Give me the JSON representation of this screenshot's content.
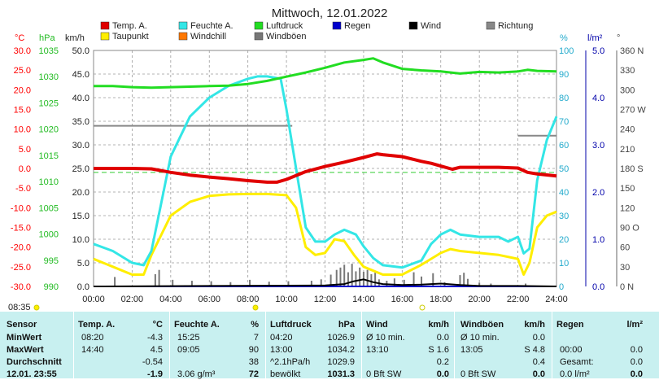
{
  "title": "Mittwoch, 12.01.2022",
  "legend": [
    {
      "label": "Temp. A.",
      "color": "#e00000"
    },
    {
      "label": "Feuchte A.",
      "color": "#33e6e6"
    },
    {
      "label": "Luftdruck",
      "color": "#22dd22"
    },
    {
      "label": "Regen",
      "color": "#0000cc"
    },
    {
      "label": "Wind",
      "color": "#000000"
    },
    {
      "label": "Richtung",
      "color": "#888888"
    },
    {
      "label": "Taupunkt",
      "color": "#ffee00"
    },
    {
      "label": "Windchill",
      "color": "#ff7700"
    },
    {
      "label": "Windböen",
      "color": "#777777"
    }
  ],
  "axes_units": {
    "temp": "°C",
    "press": "hPa",
    "wind": "km/h",
    "hum": "%",
    "rain": "l/m²",
    "dir": "°"
  },
  "left_axis_colors": {
    "temp": "#ff0000",
    "press": "#22bb22",
    "wind": "#222222"
  },
  "right_axis_colors": {
    "hum": "#22aacc",
    "rain": "#0000aa",
    "dir": "#444444"
  },
  "sun_times": {
    "sunrise": "08:35"
  },
  "chart_data": {
    "type": "line",
    "x_range": [
      "00:00",
      "24:00"
    ],
    "x_ticks": [
      "00:00",
      "02:00",
      "04:00",
      "06:00",
      "08:00",
      "10:00",
      "12:00",
      "14:00",
      "16:00",
      "18:00",
      "20:00",
      "22:00",
      "24:00"
    ],
    "axes": {
      "temp": {
        "unit": "°C",
        "min": -30,
        "max": 30,
        "ticks": [
          "30.0",
          "25.0",
          "20.0",
          "15.0",
          "10.0",
          "5.0",
          "0.0",
          "-5.0",
          "-10.0",
          "-15.0",
          "-20.0",
          "-25.0",
          "-30.0"
        ]
      },
      "press": {
        "unit": "hPa",
        "min": 990,
        "max": 1035,
        "ticks": [
          "1035",
          "1030",
          "1025",
          "1020",
          "1015",
          "1010",
          "1005",
          "1000",
          "995",
          "990"
        ]
      },
      "wind": {
        "unit": "km/h",
        "min": 0,
        "max": 50,
        "ticks": [
          "50.0",
          "45.0",
          "40.0",
          "35.0",
          "30.0",
          "25.0",
          "20.0",
          "15.0",
          "10.0",
          "5.0",
          "0.0"
        ]
      },
      "hum": {
        "unit": "%",
        "min": 0,
        "max": 100,
        "ticks": [
          "100",
          "90",
          "80",
          "70",
          "60",
          "50",
          "40",
          "30",
          "20",
          "10",
          "0"
        ]
      },
      "rain": {
        "unit": "l/m²",
        "min": 0,
        "max": 5,
        "ticks": [
          "5.0",
          "4.0",
          "3.0",
          "2.0",
          "1.0",
          "0.0"
        ]
      },
      "dir": {
        "unit": "°",
        "min": 0,
        "max": 360,
        "ticks": [
          "360 N",
          "330",
          "300",
          "270 W",
          "240",
          "210",
          "180 S",
          "150",
          "120",
          "90 O",
          "60",
          "30",
          "0 N"
        ]
      }
    },
    "series": [
      {
        "name": "Temp. A.",
        "axis": "temp",
        "color": "#e00000",
        "points": [
          [
            0,
            0
          ],
          [
            0.5,
            0
          ],
          [
            2,
            0
          ],
          [
            3,
            -0.1
          ],
          [
            4,
            -1
          ],
          [
            5,
            -1.7
          ],
          [
            6,
            -2.2
          ],
          [
            7,
            -2.6
          ],
          [
            8,
            -3.1
          ],
          [
            9,
            -3.5
          ],
          [
            9.5,
            -3.5
          ],
          [
            10,
            -2.8
          ],
          [
            11,
            -0.8
          ],
          [
            12,
            0.5
          ],
          [
            13,
            1.6
          ],
          [
            14,
            2.8
          ],
          [
            14.7,
            3.7
          ],
          [
            15,
            3.5
          ],
          [
            16,
            3
          ],
          [
            17,
            1.8
          ],
          [
            17.5,
            1.3
          ],
          [
            18,
            0.6
          ],
          [
            18.6,
            -0.2
          ],
          [
            19,
            0.3
          ],
          [
            20,
            0.3
          ],
          [
            21,
            0.3
          ],
          [
            22,
            0.1
          ],
          [
            22.5,
            -1
          ],
          [
            23,
            -1.4
          ],
          [
            24,
            -1.9
          ]
        ]
      },
      {
        "name": "Feuchte A.",
        "axis": "hum",
        "color": "#33e6e6",
        "points": [
          [
            0,
            18
          ],
          [
            1,
            15
          ],
          [
            2,
            10
          ],
          [
            2.6,
            9
          ],
          [
            3,
            15
          ],
          [
            3.5,
            35
          ],
          [
            4,
            55
          ],
          [
            5,
            72
          ],
          [
            6,
            80
          ],
          [
            7,
            85
          ],
          [
            8,
            88
          ],
          [
            8.5,
            89
          ],
          [
            9,
            89
          ],
          [
            9.7,
            88
          ],
          [
            10,
            75
          ],
          [
            10.5,
            50
          ],
          [
            11,
            25
          ],
          [
            11.5,
            19
          ],
          [
            12,
            19
          ],
          [
            12.5,
            22
          ],
          [
            13,
            24
          ],
          [
            13.6,
            22
          ],
          [
            14,
            17
          ],
          [
            14.5,
            12
          ],
          [
            15,
            9
          ],
          [
            16,
            8
          ],
          [
            17,
            11
          ],
          [
            17.5,
            18
          ],
          [
            18,
            22
          ],
          [
            18.5,
            24
          ],
          [
            19,
            22
          ],
          [
            20,
            21
          ],
          [
            21,
            21
          ],
          [
            21.5,
            19
          ],
          [
            22,
            21
          ],
          [
            22.3,
            14
          ],
          [
            22.6,
            16
          ],
          [
            23,
            45
          ],
          [
            23.5,
            62
          ],
          [
            24,
            72
          ]
        ]
      },
      {
        "name": "Luftdruck",
        "axis": "press",
        "color": "#22dd22",
        "points": [
          [
            0,
            1028.2
          ],
          [
            1,
            1028.2
          ],
          [
            2,
            1028.0
          ],
          [
            3,
            1027.9
          ],
          [
            4,
            1028.0
          ],
          [
            5,
            1028.1
          ],
          [
            6,
            1028.2
          ],
          [
            7,
            1028.3
          ],
          [
            8,
            1028.6
          ],
          [
            9,
            1029.2
          ],
          [
            10,
            1030.0
          ],
          [
            11,
            1030.8
          ],
          [
            12,
            1031.7
          ],
          [
            13,
            1032.7
          ],
          [
            14,
            1033.2
          ],
          [
            14.5,
            1033.5
          ],
          [
            15,
            1032.7
          ],
          [
            16,
            1031.5
          ],
          [
            17,
            1031.2
          ],
          [
            18,
            1031.0
          ],
          [
            19,
            1030.6
          ],
          [
            20,
            1030.9
          ],
          [
            21,
            1030.8
          ],
          [
            22,
            1031.0
          ],
          [
            22.5,
            1031.3
          ],
          [
            23,
            1031.1
          ],
          [
            24,
            1031.0
          ]
        ]
      },
      {
        "name": "Taupunkt",
        "axis": "temp",
        "color": "#ffee00",
        "points": [
          [
            0,
            -23
          ],
          [
            1,
            -25
          ],
          [
            2,
            -27
          ],
          [
            2.6,
            -27
          ],
          [
            3,
            -22
          ],
          [
            4,
            -12
          ],
          [
            5,
            -8.5
          ],
          [
            6,
            -7
          ],
          [
            7,
            -6.6
          ],
          [
            8,
            -6.5
          ],
          [
            9,
            -6.5
          ],
          [
            10,
            -6.8
          ],
          [
            10.5,
            -10
          ],
          [
            11,
            -20
          ],
          [
            11.5,
            -22
          ],
          [
            12,
            -21.5
          ],
          [
            12.5,
            -18
          ],
          [
            13,
            -18.5
          ],
          [
            13.5,
            -22
          ],
          [
            14,
            -25
          ],
          [
            15,
            -27
          ],
          [
            16,
            -27
          ],
          [
            17,
            -24.5
          ],
          [
            18,
            -21.5
          ],
          [
            18.5,
            -20.5
          ],
          [
            19,
            -21
          ],
          [
            20,
            -21.5
          ],
          [
            21,
            -22
          ],
          [
            22,
            -23
          ],
          [
            22.3,
            -27
          ],
          [
            22.6,
            -24
          ],
          [
            23,
            -15
          ],
          [
            23.5,
            -12
          ],
          [
            24,
            -11
          ]
        ]
      },
      {
        "name": "Windchill",
        "axis": "temp",
        "color": "#ff7700",
        "points": []
      },
      {
        "name": "Regen",
        "axis": "rain",
        "color": "#0000cc",
        "points": [
          [
            0,
            0
          ],
          [
            24,
            0
          ]
        ]
      },
      {
        "name": "Wind",
        "axis": "wind",
        "color": "#000000",
        "points": [
          [
            0,
            0
          ],
          [
            12,
            0.2
          ],
          [
            13,
            0.5
          ],
          [
            13.5,
            1.1
          ],
          [
            14,
            1.5
          ],
          [
            14.5,
            0.9
          ],
          [
            15,
            0.5
          ],
          [
            16,
            0.3
          ],
          [
            17,
            0.4
          ],
          [
            18,
            0.6
          ],
          [
            19,
            0.3
          ],
          [
            20,
            0.1
          ],
          [
            21,
            0.1
          ],
          [
            22,
            0.1
          ],
          [
            24,
            0
          ]
        ]
      },
      {
        "name": "Windböen",
        "axis": "wind",
        "color": "#777777",
        "bars": [
          [
            1.1,
            2
          ],
          [
            3.2,
            2.6
          ],
          [
            3.4,
            3.5
          ],
          [
            4.1,
            1.4
          ],
          [
            5.1,
            1.2
          ],
          [
            6.1,
            1.1
          ],
          [
            7.1,
            0.9
          ],
          [
            8.1,
            1.4
          ],
          [
            9.1,
            1.0
          ],
          [
            10.1,
            1.1
          ],
          [
            11.3,
            1.2
          ],
          [
            11.8,
            1.5
          ],
          [
            12.3,
            2.5
          ],
          [
            12.6,
            3.5
          ],
          [
            12.8,
            4.0
          ],
          [
            13.0,
            4.6
          ],
          [
            13.2,
            3.0
          ],
          [
            13.4,
            4.8
          ],
          [
            13.6,
            3.2
          ],
          [
            13.8,
            4.0
          ],
          [
            14.0,
            3.1
          ],
          [
            14.2,
            3.5
          ],
          [
            14.4,
            2.6
          ],
          [
            14.6,
            2.9
          ],
          [
            14.8,
            1.5
          ],
          [
            15.2,
            1.2
          ],
          [
            15.6,
            1.7
          ],
          [
            16.1,
            1.4
          ],
          [
            16.6,
            3.0
          ],
          [
            17.0,
            2.1
          ],
          [
            17.6,
            2.8
          ],
          [
            18.2,
            0.9
          ],
          [
            19.0,
            2.4
          ],
          [
            19.2,
            2.9
          ],
          [
            19.4,
            1.6
          ],
          [
            20.0,
            0.8
          ],
          [
            20.6,
            0.6
          ],
          [
            22.4,
            0.6
          ]
        ]
      },
      {
        "name": "Richtung",
        "axis": "dir",
        "color": "#888888",
        "points": [
          [
            0,
            245
          ],
          [
            10.3,
            245
          ],
          [
            22,
            230
          ],
          [
            24,
            230
          ]
        ]
      }
    ]
  },
  "summary": {
    "headers": {
      "sensor": "Sensor",
      "temp": "Temp. A.",
      "temp_unit": "°C",
      "hum": "Feuchte A.",
      "hum_unit": "%",
      "press": "Luftdruck",
      "press_unit": "hPa",
      "wind": "Wind",
      "wind_unit": "km/h",
      "gust": "Windböen",
      "gust_unit": "km/h",
      "rain": "Regen",
      "rain_unit": "l/m²"
    },
    "rows": [
      {
        "label": "MinWert",
        "t_time": "08:20",
        "t_val": "-4.3",
        "h_time": "15:25",
        "h_val": "7",
        "p_time": "04:20",
        "p_val": "1026.9",
        "w_time": "Ø 10 min.",
        "w_val": "0.0",
        "g_time": "Ø 10 min.",
        "g_val": "0.0",
        "r_time": "",
        "r_val": ""
      },
      {
        "label": "MaxWert",
        "t_time": "14:40",
        "t_val": "4.5",
        "h_time": "09:05",
        "h_val": "90",
        "p_time": "13:00",
        "p_val": "1034.2",
        "w_time": "13:10",
        "w_val": "S 1.6",
        "g_time": "13:05",
        "g_val": "S 4.8",
        "r_time": "00:00",
        "r_val": "0.0"
      },
      {
        "label": "Durchschnitt",
        "t_time": "",
        "t_val": "-0.54",
        "h_time": "",
        "h_val": "38",
        "p_time": "^2.1hPa/h",
        "p_val": "1029.9",
        "w_time": "",
        "w_val": "0.2",
        "g_time": "",
        "g_val": "0.4",
        "r_time": "Gesamt:",
        "r_val": "0.0"
      },
      {
        "label": "12.01. 23:55",
        "t_time": "",
        "t_val": "-1.9",
        "h_time": "3.06 g/m³",
        "h_val": "72",
        "p_time": "bewölkt",
        "p_val": "1031.3",
        "w_time": "0 Bft SW",
        "w_val": "0.0",
        "g_time": "0 Bft SW",
        "g_val": "0.0",
        "r_time": "0.0 l/m²",
        "r_val": "0.0"
      }
    ]
  }
}
